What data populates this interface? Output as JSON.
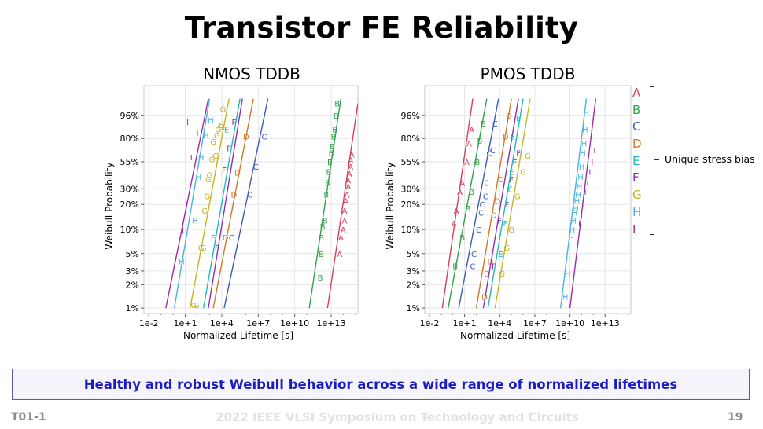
{
  "slide": {
    "title": "Transistor FE Reliability",
    "callout": "Healthy and robust Weibull behavior across a wide range of normalized lifetimes",
    "footer_left": "T01-1",
    "footer_center": "2022 IEEE VLSI Symposium on Technology and Circuits",
    "footer_right": "19"
  },
  "legend": {
    "note": "Unique stress bias",
    "entries": [
      {
        "label": "A",
        "color": "#d4405a"
      },
      {
        "label": "B",
        "color": "#2fa14a"
      },
      {
        "label": "C",
        "color": "#3b5bb5"
      },
      {
        "label": "D",
        "color": "#d0782a"
      },
      {
        "label": "E",
        "color": "#20b8b8"
      },
      {
        "label": "F",
        "color": "#8a30b0"
      },
      {
        "label": "G",
        "color": "#c4b420"
      },
      {
        "label": "H",
        "color": "#4ab4e0"
      },
      {
        "label": "I",
        "color": "#a02aa0"
      }
    ]
  },
  "chart_data": [
    {
      "type": "scatter",
      "title": "NMOS TDDB",
      "xlabel": "Normalized Lifetime [s]",
      "ylabel": "Weibull Probability",
      "xscale": "log10",
      "yscale": "weibull",
      "xlim_log10": [
        -2.4,
        15.2
      ],
      "ylim_percent": [
        0.85,
        99.96
      ],
      "x_ticks": [
        {
          "v": -2,
          "label": "1e-2"
        },
        {
          "v": 1,
          "label": "1e+1"
        },
        {
          "v": 4,
          "label": "1e+4"
        },
        {
          "v": 7,
          "label": "1e+7"
        },
        {
          "v": 10,
          "label": "1e+10"
        },
        {
          "v": 13,
          "label": "1e+13"
        }
      ],
      "y_ticks": [
        {
          "v": 1,
          "label": "1%"
        },
        {
          "v": 2,
          "label": "2%"
        },
        {
          "v": 3,
          "label": "3%"
        },
        {
          "v": 5,
          "label": "5%"
        },
        {
          "v": 10,
          "label": "10%"
        },
        {
          "v": 20,
          "label": "20%"
        },
        {
          "v": 30,
          "label": "30%"
        },
        {
          "v": 55,
          "label": "55%"
        },
        {
          "v": 80,
          "label": "80%"
        },
        {
          "v": 96,
          "label": "96%"
        }
      ],
      "grid": true,
      "series": [
        {
          "name": "I",
          "line": [
            [
              -0.6,
              1
            ],
            [
              2.9,
              99.5
            ]
          ],
          "points": [
            [
              0.8,
              10
            ],
            [
              1.1,
              20
            ],
            [
              1.7,
              30
            ],
            [
              1.5,
              60
            ],
            [
              2.0,
              85
            ],
            [
              1.2,
              93
            ]
          ]
        },
        {
          "name": "H",
          "line": [
            [
              0.1,
              1
            ],
            [
              3.0,
              99.5
            ]
          ],
          "points": [
            [
              0.7,
              4
            ],
            [
              1.8,
              13
            ],
            [
              2.1,
              40
            ],
            [
              2.3,
              60
            ],
            [
              2.7,
              83
            ],
            [
              3.1,
              94
            ]
          ]
        },
        {
          "name": "G",
          "line": [
            [
              1.4,
              1
            ],
            [
              4.6,
              99.5
            ]
          ],
          "points": [
            [
              1.7,
              1.1
            ],
            [
              1.9,
              1.1
            ],
            [
              2.3,
              6
            ],
            [
              2.5,
              6
            ],
            [
              2.6,
              17
            ],
            [
              2.8,
              25
            ],
            [
              2.9,
              38
            ],
            [
              3.0,
              42
            ],
            [
              3.2,
              58
            ],
            [
              3.5,
              62
            ],
            [
              3.3,
              77
            ],
            [
              3.6,
              83
            ],
            [
              3.7,
              88
            ],
            [
              3.9,
              90
            ],
            [
              4.0,
              91
            ],
            [
              4.1,
              98
            ]
          ]
        },
        {
          "name": "E",
          "line": [
            [
              2.5,
              1
            ],
            [
              5.5,
              99.5
            ]
          ],
          "points": [
            [
              3.3,
              8
            ],
            [
              4.4,
              88
            ]
          ]
        },
        {
          "name": "F",
          "line": [
            [
              2.9,
              1
            ],
            [
              5.7,
              99.5
            ]
          ],
          "points": [
            [
              3.6,
              6
            ],
            [
              4.2,
              47
            ],
            [
              4.6,
              70
            ],
            [
              5.0,
              93
            ]
          ]
        },
        {
          "name": "D",
          "line": [
            [
              3.3,
              1
            ],
            [
              6.6,
              99.5
            ]
          ],
          "points": [
            [
              4.3,
              8
            ],
            [
              5.0,
              26
            ],
            [
              5.3,
              44
            ],
            [
              6.0,
              82
            ]
          ]
        },
        {
          "name": "C",
          "line": [
            [
              4.2,
              1
            ],
            [
              7.8,
              99.5
            ]
          ],
          "points": [
            [
              4.8,
              8
            ],
            [
              6.3,
              26
            ],
            [
              6.8,
              50
            ],
            [
              7.5,
              82
            ]
          ]
        },
        {
          "name": "B",
          "line": [
            [
              11.2,
              1
            ],
            [
              13.8,
              99.5
            ]
          ],
          "points": [
            [
              12.1,
              2.5
            ],
            [
              12.2,
              5
            ],
            [
              12.2,
              8
            ],
            [
              12.3,
              11
            ],
            [
              12.5,
              13
            ],
            [
              12.6,
              26
            ],
            [
              12.7,
              35
            ],
            [
              12.8,
              45
            ],
            [
              12.9,
              55
            ],
            [
              13.0,
              65
            ],
            [
              13.1,
              72
            ],
            [
              13.2,
              82
            ],
            [
              13.3,
              88
            ],
            [
              13.4,
              96
            ],
            [
              13.5,
              99
            ]
          ]
        },
        {
          "name": "A",
          "line": [
            [
              12.7,
              1
            ],
            [
              15.2,
              99
            ]
          ],
          "points": [
            [
              13.7,
              5
            ],
            [
              13.8,
              8
            ],
            [
              14.0,
              10
            ],
            [
              14.1,
              13
            ],
            [
              14.1,
              17
            ],
            [
              14.2,
              22
            ],
            [
              14.3,
              26
            ],
            [
              14.4,
              32
            ],
            [
              14.4,
              37
            ],
            [
              14.5,
              43
            ],
            [
              14.6,
              50
            ],
            [
              14.6,
              57
            ],
            [
              14.7,
              63
            ]
          ]
        }
      ]
    },
    {
      "type": "scatter",
      "title": "PMOS TDDB",
      "xlabel": "Normalized Lifetime [s]",
      "ylabel": "Weibull Probability",
      "xscale": "log10",
      "yscale": "weibull",
      "xlim_log10": [
        -2.4,
        15.2
      ],
      "ylim_percent": [
        0.85,
        99.96
      ],
      "x_ticks": [
        {
          "v": -2,
          "label": "1e-2"
        },
        {
          "v": 1,
          "label": "1e+1"
        },
        {
          "v": 4,
          "label": "1e+4"
        },
        {
          "v": 7,
          "label": "1e+7"
        },
        {
          "v": 10,
          "label": "1e+10"
        },
        {
          "v": 13,
          "label": "1e+13"
        }
      ],
      "y_ticks": [
        {
          "v": 1,
          "label": "1%"
        },
        {
          "v": 2,
          "label": "2%"
        },
        {
          "v": 3,
          "label": "3%"
        },
        {
          "v": 5,
          "label": "5%"
        },
        {
          "v": 10,
          "label": "10%"
        },
        {
          "v": 20,
          "label": "20%"
        },
        {
          "v": 30,
          "label": "30%"
        },
        {
          "v": 55,
          "label": "55%"
        },
        {
          "v": 80,
          "label": "80%"
        },
        {
          "v": 96,
          "label": "96%"
        }
      ],
      "grid": true,
      "series": [
        {
          "name": "A",
          "line": [
            [
              -0.9,
              1
            ],
            [
              1.7,
              99.5
            ]
          ],
          "points": [
            [
              0.1,
              12
            ],
            [
              0.3,
              17
            ],
            [
              0.6,
              28
            ],
            [
              0.8,
              35
            ],
            [
              1.2,
              55
            ],
            [
              1.4,
              75
            ],
            [
              1.6,
              88
            ]
          ]
        },
        {
          "name": "B",
          "line": [
            [
              -0.4,
              1
            ],
            [
              2.9,
              99.5
            ]
          ],
          "points": [
            [
              0.2,
              3.5
            ],
            [
              0.8,
              8
            ],
            [
              1.3,
              18
            ],
            [
              1.6,
              28
            ],
            [
              2.1,
              55
            ],
            [
              2.3,
              78
            ],
            [
              2.6,
              92
            ]
          ]
        },
        {
          "name": "C",
          "line": [
            [
              0.5,
              1
            ],
            [
              3.9,
              99.5
            ]
          ],
          "points": [
            [
              1.7,
              3.5
            ],
            [
              1.8,
              5
            ],
            [
              2.2,
              10
            ],
            [
              2.4,
              16
            ],
            [
              2.5,
              20
            ],
            [
              2.8,
              25
            ],
            [
              2.9,
              35
            ],
            [
              3.1,
              65
            ],
            [
              3.4,
              68
            ],
            [
              3.6,
              92
            ]
          ]
        },
        {
          "name": "D",
          "line": [
            [
              2.0,
              1
            ],
            [
              5.0,
              99.5
            ]
          ],
          "points": [
            [
              2.7,
              1.4
            ],
            [
              2.9,
              2.8
            ],
            [
              3.2,
              4
            ],
            [
              3.5,
              15
            ],
            [
              3.8,
              22
            ],
            [
              4.1,
              38
            ],
            [
              4.5,
              82
            ],
            [
              4.8,
              96
            ]
          ]
        },
        {
          "name": "F",
          "line": [
            [
              2.6,
              1
            ],
            [
              5.6,
              99.5
            ]
          ],
          "points": [
            [
              3.5,
              3.5
            ],
            [
              4.0,
              13
            ],
            [
              4.6,
              20
            ],
            [
              5.0,
              38
            ],
            [
              5.3,
              55
            ],
            [
              5.6,
              65
            ]
          ]
        },
        {
          "name": "E",
          "line": [
            [
              3.0,
              1
            ],
            [
              6.0,
              99.5
            ]
          ],
          "points": [
            [
              4.1,
              5
            ],
            [
              4.5,
              12
            ],
            [
              4.9,
              30
            ],
            [
              5.0,
              45
            ],
            [
              5.1,
              82
            ],
            [
              5.6,
              95
            ]
          ]
        },
        {
          "name": "G",
          "line": [
            [
              3.6,
              1
            ],
            [
              6.6,
              99.5
            ]
          ],
          "points": [
            [
              4.2,
              2.8
            ],
            [
              4.6,
              6
            ],
            [
              5.0,
              10
            ],
            [
              5.5,
              25
            ],
            [
              6.0,
              45
            ],
            [
              6.4,
              62
            ]
          ]
        },
        {
          "name": "H",
          "line": [
            [
              9.2,
              1
            ],
            [
              11.4,
              99.5
            ]
          ],
          "points": [
            [
              9.6,
              1.4
            ],
            [
              9.8,
              2.8
            ],
            [
              10.1,
              8
            ],
            [
              10.2,
              10
            ],
            [
              10.3,
              13
            ],
            [
              10.4,
              16
            ],
            [
              10.5,
              18
            ],
            [
              10.6,
              22
            ],
            [
              10.7,
              26
            ],
            [
              10.8,
              32
            ],
            [
              10.9,
              40
            ],
            [
              11.0,
              50
            ],
            [
              11.1,
              65
            ],
            [
              11.2,
              75
            ],
            [
              11.3,
              88
            ],
            [
              11.4,
              97
            ]
          ]
        },
        {
          "name": "I",
          "line": [
            [
              10.0,
              1
            ],
            [
              12.2,
              99.5
            ]
          ],
          "points": [
            [
              10.6,
              8
            ],
            [
              10.8,
              12
            ],
            [
              11.0,
              15
            ],
            [
              11.1,
              20
            ],
            [
              11.3,
              28
            ],
            [
              11.5,
              35
            ],
            [
              11.7,
              45
            ],
            [
              11.9,
              55
            ],
            [
              12.1,
              68
            ]
          ]
        }
      ]
    }
  ]
}
